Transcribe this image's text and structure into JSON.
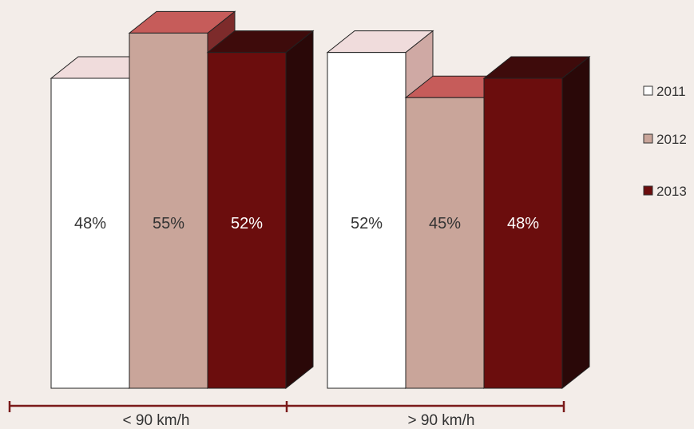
{
  "chart_data": {
    "type": "bar",
    "categories": [
      "< 90 km/h",
      "> 90 km/h"
    ],
    "series": [
      {
        "name": "2011",
        "values": [
          48,
          52
        ],
        "labels": [
          "48%",
          "52%"
        ]
      },
      {
        "name": "2012",
        "values": [
          55,
          45
        ],
        "labels": [
          "55%",
          "45%"
        ]
      },
      {
        "name": "2013",
        "values": [
          52,
          48
        ],
        "labels": [
          "52%",
          "48%"
        ]
      }
    ],
    "ylim": [
      0,
      60
    ],
    "grid": false,
    "legend_position": "right",
    "three_d": true,
    "stacked_100": true
  },
  "colors": {
    "background": "#f3ede9",
    "axis": "#7a1a1a",
    "series": [
      {
        "front": "#ffffff",
        "top": "#f0dcdc",
        "side": "#cfa9a4",
        "text": "#333333"
      },
      {
        "front": "#c9a59a",
        "top": "#c65c5a",
        "side": "#7d2b2b",
        "text": "#333333"
      },
      {
        "front": "#6b0d0d",
        "top": "#3e0b0b",
        "side": "#2a0808",
        "text": "#ffffff"
      }
    ]
  }
}
